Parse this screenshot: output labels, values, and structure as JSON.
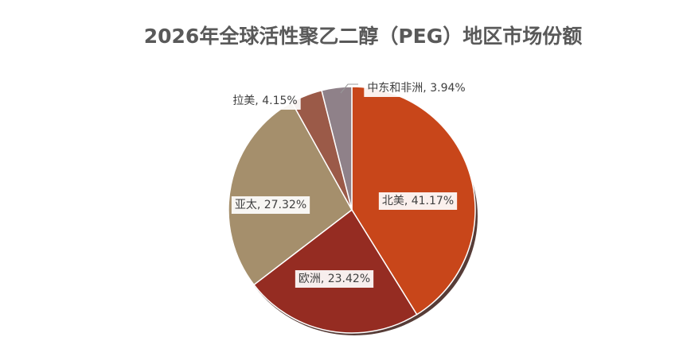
{
  "chart_data": {
    "type": "pie",
    "title": "2026年全球活性聚乙二醇（PEG）地区市场份额",
    "values": [
      41.17,
      23.42,
      27.32,
      4.15,
      3.94
    ],
    "value_labels": [
      "北美, 41.17%",
      "欧洲, 23.42%",
      "亚太, 27.32%",
      "拉美, 4.15%",
      "中东和非洲, 3.94%"
    ],
    "colors": [
      "#c8461a",
      "#952c22",
      "#a58f6c",
      "#9b5a48",
      "#8f8189"
    ]
  }
}
